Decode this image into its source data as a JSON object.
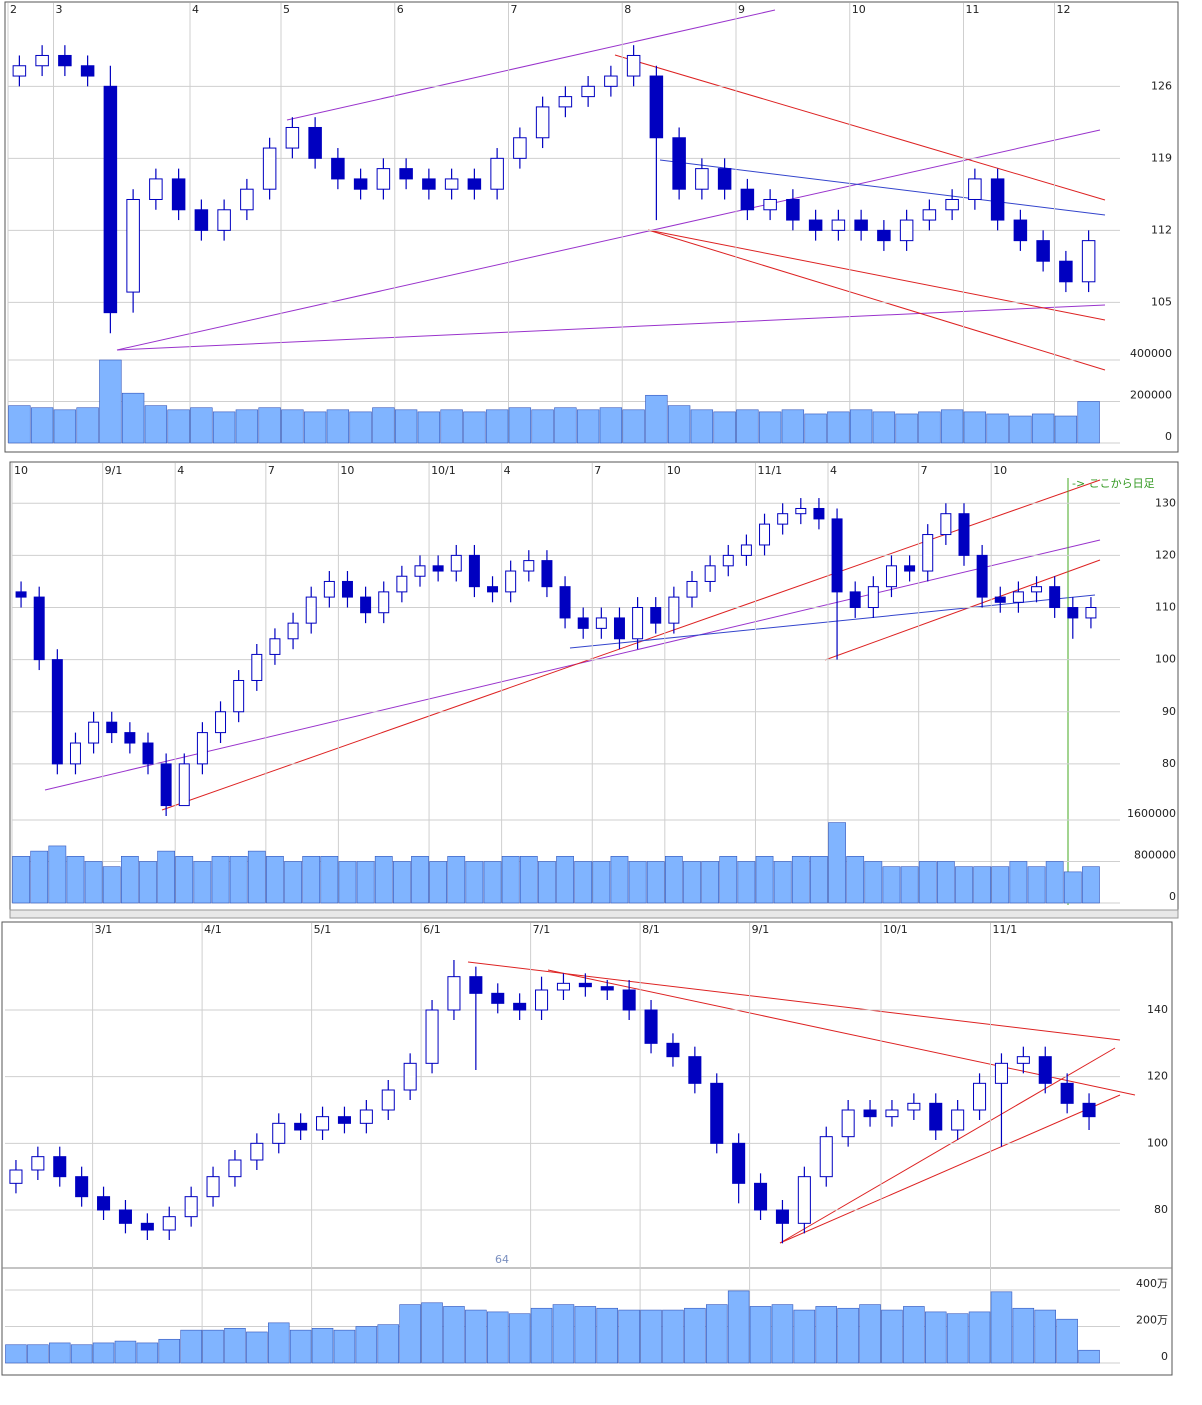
{
  "chart_data": [
    {
      "type": "candlestick",
      "color": "#0000c0",
      "categories": [
        "2",
        null,
        "3",
        null,
        null,
        null,
        null,
        null,
        "4",
        null,
        null,
        null,
        "5",
        null,
        null,
        null,
        null,
        "6",
        null,
        null,
        null,
        null,
        "7",
        null,
        null,
        null,
        null,
        "8",
        null,
        null,
        null,
        null,
        "9",
        null,
        null,
        null,
        null,
        "10",
        null,
        null,
        null,
        null,
        "11",
        null,
        null,
        null,
        "12",
        null
      ],
      "open": [
        127,
        128,
        129,
        128,
        126,
        106,
        115,
        117,
        114,
        112,
        114,
        116,
        120,
        122,
        119,
        117,
        116,
        118,
        117,
        116,
        117,
        116,
        119,
        121,
        124,
        125,
        126,
        127,
        127,
        121,
        116,
        118,
        116,
        114,
        115,
        113,
        112,
        113,
        112,
        111,
        113,
        114,
        115,
        117,
        113,
        111,
        109,
        107
      ],
      "high": [
        129,
        130,
        130,
        129,
        128,
        116,
        118,
        118,
        115,
        115,
        117,
        121,
        123,
        123,
        120,
        118,
        119,
        119,
        118,
        118,
        118,
        120,
        122,
        125,
        126,
        127,
        128,
        130,
        128,
        122,
        119,
        119,
        117,
        116,
        116,
        114,
        114,
        114,
        113,
        114,
        115,
        116,
        118,
        118,
        114,
        112,
        110,
        112
      ],
      "low": [
        126,
        127,
        127,
        126,
        102,
        104,
        114,
        113,
        111,
        111,
        113,
        115,
        119,
        118,
        116,
        115,
        115,
        116,
        115,
        115,
        115,
        115,
        118,
        120,
        123,
        124,
        125,
        126,
        113,
        115,
        115,
        115,
        113,
        113,
        112,
        111,
        111,
        111,
        110,
        110,
        112,
        113,
        114,
        112,
        110,
        108,
        106,
        106
      ],
      "close": [
        128,
        129,
        128,
        127,
        104,
        115,
        117,
        114,
        112,
        114,
        116,
        120,
        122,
        119,
        117,
        116,
        118,
        117,
        116,
        117,
        116,
        119,
        121,
        124,
        125,
        126,
        127,
        129,
        121,
        116,
        118,
        116,
        114,
        115,
        113,
        112,
        113,
        112,
        111,
        113,
        114,
        115,
        117,
        113,
        111,
        109,
        107,
        111
      ],
      "ylim": [
        99.3,
        134.1
      ],
      "yticks": [
        105,
        112,
        119,
        126
      ],
      "grid": true,
      "volume": {
        "color": "#80b4ff",
        "ylim": [
          0,
          400000
        ],
        "yticks": [
          0,
          200000,
          400000
        ],
        "values": [
          180000,
          170000,
          160000,
          170000,
          400000,
          240000,
          180000,
          160000,
          170000,
          150000,
          160000,
          170000,
          160000,
          150000,
          160000,
          150000,
          170000,
          160000,
          150000,
          160000,
          150000,
          160000,
          170000,
          160000,
          170000,
          160000,
          170000,
          160000,
          230000,
          180000,
          160000,
          150000,
          160000,
          150000,
          160000,
          140000,
          150000,
          160000,
          150000,
          140000,
          150000,
          160000,
          150000,
          140000,
          130000,
          140000,
          130000,
          200000
        ]
      }
    },
    {
      "type": "candlestick",
      "color": "#0000c0",
      "annotation": "-> ここから日足",
      "categories": [
        "10",
        null,
        null,
        null,
        null,
        "9/1",
        null,
        null,
        null,
        "4",
        null,
        null,
        null,
        null,
        "7",
        null,
        null,
        null,
        "10",
        null,
        null,
        null,
        null,
        "10/1",
        null,
        null,
        null,
        "4",
        null,
        null,
        null,
        null,
        "7",
        null,
        null,
        null,
        "10",
        null,
        null,
        null,
        null,
        "11/1",
        null,
        null,
        null,
        "4",
        null,
        null,
        null,
        null,
        "7",
        null,
        null,
        null,
        "10",
        null,
        null,
        null,
        null,
        null
      ],
      "open": [
        113,
        112,
        100,
        80,
        84,
        88,
        86,
        84,
        80,
        72,
        80,
        86,
        90,
        96,
        101,
        104,
        107,
        112,
        115,
        112,
        109,
        113,
        116,
        118,
        117,
        120,
        114,
        113,
        117,
        119,
        114,
        108,
        106,
        108,
        104,
        110,
        107,
        112,
        115,
        118,
        120,
        122,
        126,
        128,
        129,
        127,
        113,
        110,
        114,
        118,
        117,
        124,
        128,
        120,
        112,
        111,
        113,
        114,
        110,
        108
      ],
      "high": [
        115,
        114,
        102,
        86,
        90,
        90,
        88,
        86,
        82,
        82,
        88,
        92,
        98,
        103,
        106,
        109,
        114,
        117,
        117,
        114,
        115,
        118,
        120,
        120,
        122,
        122,
        116,
        119,
        121,
        121,
        116,
        110,
        110,
        110,
        112,
        112,
        114,
        117,
        120,
        122,
        124,
        128,
        130,
        131,
        131,
        129,
        115,
        116,
        120,
        120,
        126,
        130,
        130,
        122,
        114,
        115,
        116,
        116,
        112,
        112
      ],
      "low": [
        110,
        98,
        78,
        78,
        82,
        84,
        82,
        78,
        70,
        72,
        78,
        84,
        88,
        94,
        99,
        102,
        105,
        110,
        110,
        107,
        107,
        111,
        114,
        115,
        115,
        112,
        111,
        111,
        115,
        112,
        106,
        104,
        104,
        102,
        102,
        105,
        105,
        110,
        113,
        116,
        118,
        120,
        124,
        126,
        125,
        100,
        108,
        108,
        112,
        115,
        115,
        122,
        118,
        110,
        109,
        109,
        111,
        108,
        104,
        106
      ],
      "close": [
        112,
        100,
        80,
        84,
        88,
        86,
        84,
        80,
        72,
        80,
        86,
        90,
        96,
        101,
        104,
        107,
        112,
        115,
        112,
        109,
        113,
        116,
        118,
        117,
        120,
        114,
        113,
        117,
        119,
        114,
        108,
        106,
        108,
        104,
        110,
        107,
        112,
        115,
        118,
        120,
        122,
        126,
        128,
        129,
        127,
        113,
        110,
        114,
        118,
        117,
        124,
        128,
        120,
        112,
        111,
        113,
        114,
        110,
        108,
        110
      ],
      "ylim": [
        70,
        136
      ],
      "yticks": [
        80,
        90,
        100,
        110,
        120,
        130
      ],
      "grid": true,
      "volume": {
        "color": "#80b4ff",
        "ylim": [
          0,
          1600000
        ],
        "yticks": [
          0,
          800000,
          1600000
        ],
        "values": [
          900000,
          1000000,
          1100000,
          900000,
          800000,
          700000,
          900000,
          800000,
          1000000,
          900000,
          800000,
          900000,
          900000,
          1000000,
          900000,
          800000,
          900000,
          900000,
          800000,
          800000,
          900000,
          800000,
          900000,
          800000,
          900000,
          800000,
          800000,
          900000,
          900000,
          800000,
          900000,
          800000,
          800000,
          900000,
          800000,
          800000,
          900000,
          800000,
          800000,
          900000,
          800000,
          900000,
          800000,
          900000,
          900000,
          1550000,
          900000,
          800000,
          700000,
          700000,
          800000,
          800000,
          700000,
          700000,
          700000,
          800000,
          700000,
          800000,
          600000,
          700000
        ]
      }
    },
    {
      "type": "candlestick",
      "color": "#0000c0",
      "annotation": "64",
      "categories": [
        null,
        null,
        null,
        null,
        "3/1",
        null,
        null,
        null,
        null,
        "4/1",
        null,
        null,
        null,
        null,
        "5/1",
        null,
        null,
        null,
        null,
        "6/1",
        null,
        null,
        null,
        null,
        "7/1",
        null,
        null,
        null,
        null,
        "8/1",
        null,
        null,
        null,
        null,
        "9/1",
        null,
        null,
        null,
        null,
        null,
        "10/1",
        null,
        null,
        null,
        null,
        "11/1",
        null,
        null,
        null,
        null
      ],
      "open": [
        88,
        92,
        96,
        90,
        84,
        80,
        76,
        74,
        78,
        84,
        90,
        95,
        100,
        106,
        104,
        108,
        106,
        110,
        116,
        124,
        140,
        150,
        145,
        142,
        140,
        146,
        148,
        147,
        146,
        140,
        130,
        126,
        118,
        100,
        88,
        80,
        76,
        90,
        102,
        110,
        108,
        110,
        112,
        104,
        110,
        118,
        124,
        126,
        118,
        112
      ],
      "high": [
        95,
        99,
        99,
        93,
        87,
        83,
        79,
        81,
        87,
        93,
        98,
        103,
        109,
        109,
        111,
        111,
        113,
        119,
        127,
        143,
        155,
        153,
        148,
        145,
        150,
        151,
        151,
        149,
        149,
        143,
        133,
        129,
        121,
        103,
        91,
        83,
        93,
        105,
        113,
        113,
        113,
        115,
        115,
        113,
        121,
        127,
        129,
        129,
        121,
        115
      ],
      "low": [
        85,
        89,
        87,
        81,
        77,
        73,
        71,
        71,
        75,
        81,
        87,
        92,
        97,
        101,
        101,
        103,
        103,
        107,
        113,
        121,
        137,
        122,
        139,
        137,
        137,
        143,
        144,
        143,
        137,
        127,
        123,
        115,
        97,
        82,
        77,
        70,
        73,
        87,
        99,
        105,
        105,
        107,
        101,
        101,
        107,
        99,
        121,
        115,
        109,
        104
      ],
      "close": [
        92,
        96,
        90,
        84,
        80,
        76,
        74,
        78,
        84,
        90,
        95,
        100,
        106,
        104,
        108,
        106,
        110,
        116,
        124,
        140,
        150,
        145,
        142,
        140,
        146,
        148,
        147,
        146,
        140,
        130,
        126,
        118,
        100,
        88,
        80,
        76,
        90,
        102,
        110,
        108,
        110,
        112,
        104,
        110,
        118,
        124,
        126,
        118,
        112,
        108
      ],
      "ylim": [
        63.5,
        164
      ],
      "yticks": [
        80,
        100,
        120,
        140
      ],
      "grid": true,
      "volume": {
        "color": "#80b4ff",
        "ylim": [
          0,
          4000000
        ],
        "yticks": [
          0,
          {
            "value": 2000000,
            "label": "200万"
          },
          {
            "value": 4000000,
            "label": "400万"
          }
        ],
        "values": [
          1000000,
          1000000,
          1100000,
          1000000,
          1100000,
          1200000,
          1100000,
          1300000,
          1800000,
          1800000,
          1900000,
          1700000,
          2200000,
          1800000,
          1900000,
          1800000,
          2000000,
          2100000,
          3200000,
          3300000,
          3100000,
          2900000,
          2800000,
          2700000,
          3000000,
          3200000,
          3100000,
          3000000,
          2900000,
          2900000,
          2900000,
          3000000,
          3200000,
          3950000,
          3100000,
          3200000,
          2900000,
          3100000,
          3000000,
          3200000,
          2900000,
          3100000,
          2800000,
          2700000,
          2800000,
          3900000,
          3000000,
          2900000,
          2400000,
          700000
        ]
      }
    }
  ]
}
